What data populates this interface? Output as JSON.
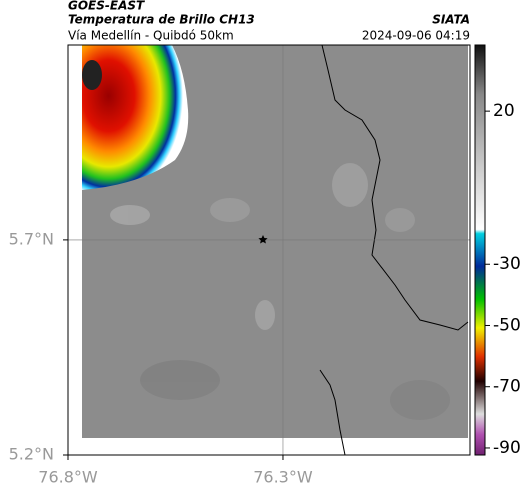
{
  "header": {
    "satellite": "GOES-EAST",
    "title": "Temperatura de Brillo CH13",
    "source": "SIATA",
    "subtitle": "Vía Medellín - Quibdó 50km",
    "datetime": "2024-09-06 04:19"
  },
  "map": {
    "latlim": [
      5.2,
      6.153
    ],
    "lonlim": [
      -76.8,
      -75.865
    ],
    "lat_ticks": [
      {
        "value": 5.7,
        "label": "5.7°N"
      },
      {
        "value": 5.2,
        "label": "5.2°N"
      }
    ],
    "lon_ticks": [
      {
        "value": -76.8,
        "label": "76.8°W"
      },
      {
        "value": -76.3,
        "label": "76.3°W"
      }
    ],
    "grid": true
  },
  "colorbar": {
    "clim": [
      -92.3,
      41.6
    ],
    "ticks": [
      20,
      -30,
      -50,
      -70,
      -90
    ]
  }
}
